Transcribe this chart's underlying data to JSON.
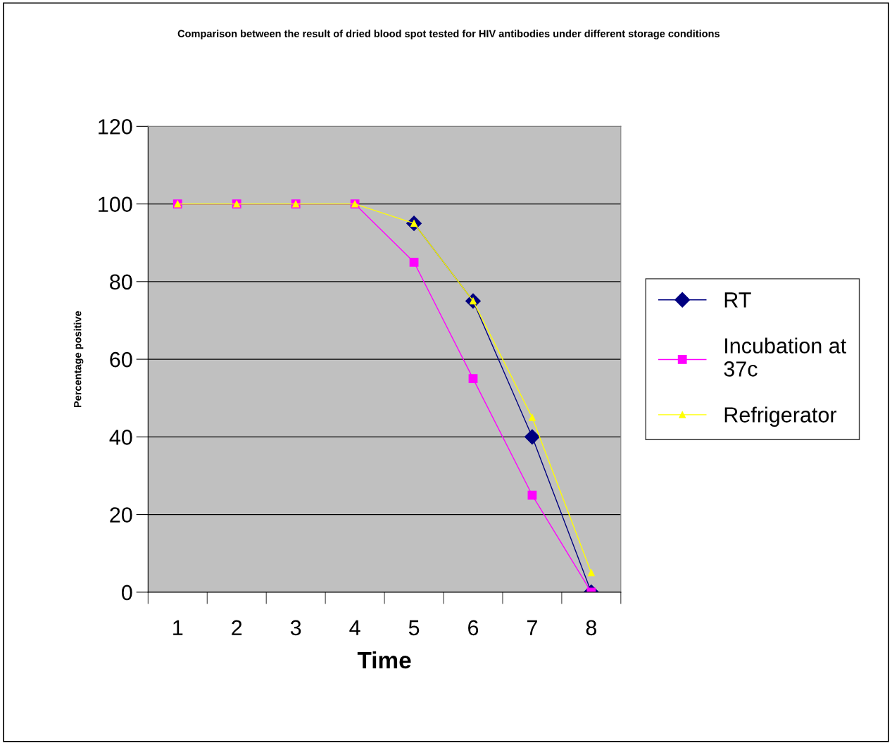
{
  "chart_data": {
    "type": "line",
    "title": "Comparison between the result of dried blood spot tested for HIV antibodies under different storage conditions",
    "xlabel": "Time",
    "ylabel": "Percentage positive",
    "categories": [
      "1",
      "2",
      "3",
      "4",
      "5",
      "6",
      "7",
      "8"
    ],
    "series": [
      {
        "name": "RT",
        "color": "#000080",
        "marker": "diamond",
        "values": [
          null,
          null,
          null,
          null,
          95,
          75,
          40,
          0
        ]
      },
      {
        "name": "Incubation at 37c",
        "color": "#ff00ff",
        "marker": "square",
        "values": [
          100,
          100,
          100,
          100,
          85,
          55,
          25,
          0
        ]
      },
      {
        "name": "Refrigerator",
        "color": "#ffff00",
        "marker": "triangle",
        "values": [
          100,
          100,
          100,
          100,
          95,
          75,
          45,
          5
        ]
      }
    ],
    "ylim": [
      0,
      120
    ],
    "yticks": [
      0,
      20,
      40,
      60,
      80,
      100,
      120
    ],
    "grid": "y",
    "legend": "right",
    "line_style": "solid"
  }
}
